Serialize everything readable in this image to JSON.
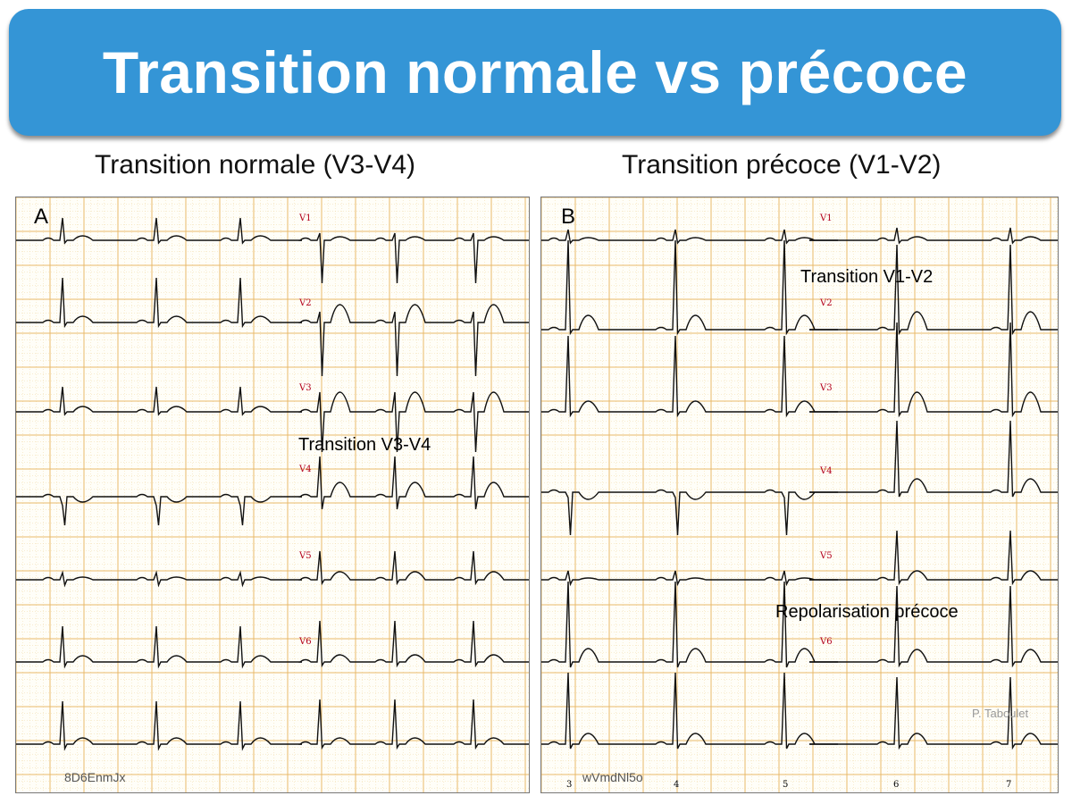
{
  "title": "Transition normale vs précoce",
  "panels": [
    {
      "subtitle": "Transition normale (V3-V4)",
      "letter": "A",
      "leads": [
        "V1",
        "V2",
        "V3",
        "V4",
        "V5",
        "V6"
      ],
      "annotation": "Transition  V3-V4",
      "code": "8D6EnmJx"
    },
    {
      "subtitle": "Transition précoce (V1-V2)",
      "letter": "B",
      "leads": [
        "V1",
        "V2",
        "V3",
        "V4",
        "V5",
        "V6"
      ],
      "annotation_1": "Transition  V1-V2",
      "annotation_2": "Repolarisation précoce",
      "code": "wVmdNl5o",
      "credit": "P. Taboulet",
      "time_marks": [
        "3",
        "4",
        "5",
        "6",
        "7"
      ]
    }
  ],
  "colors": {
    "banner": "#3495d6",
    "grid_major": "#e8b96a",
    "grid_minor": "#f1d9a5",
    "trace": "#111111",
    "lead_label": "#b3001b"
  }
}
